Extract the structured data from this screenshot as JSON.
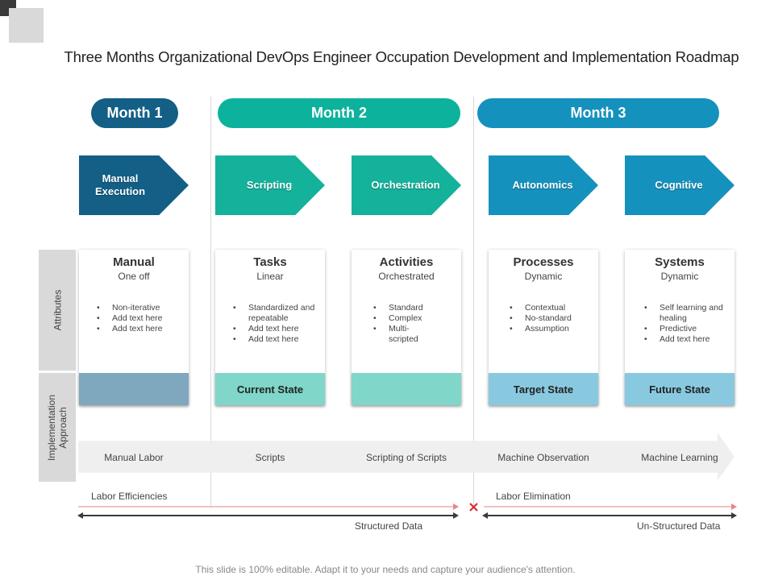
{
  "title": "Three Months Organizational DevOps Engineer Occupation Development and Implementation Roadmap",
  "months": [
    "Month 1",
    "Month 2",
    "Month 3"
  ],
  "stages": [
    {
      "label": "Manual Execution"
    },
    {
      "label": "Scripting"
    },
    {
      "label": "Orchestration"
    },
    {
      "label": "Autonomics"
    },
    {
      "label": "Cognitive"
    }
  ],
  "side_labels": {
    "attributes": "Attributes",
    "implementation": "Implementation Approach"
  },
  "cards": [
    {
      "title": "Manual",
      "subtitle": "One off",
      "bullets": [
        "Non-iterative",
        "Add text here",
        "Add text here"
      ]
    },
    {
      "title": "Tasks",
      "subtitle": "Linear",
      "bullets": [
        "Standardized and repeatable",
        "Add text here",
        "Add text here"
      ]
    },
    {
      "title": "Activities",
      "subtitle": "Orchestrated",
      "bullets": [
        "Standard",
        "Complex",
        "Multi- scripted"
      ]
    },
    {
      "title": "Processes",
      "subtitle": "Dynamic",
      "bullets": [
        "Contextual",
        "No-standard",
        "Assumption"
      ]
    },
    {
      "title": "Systems",
      "subtitle": "Dynamic",
      "bullets": [
        "Self learning and healing",
        "Predictive",
        "Add text here"
      ]
    }
  ],
  "states": [
    "",
    "Current State",
    "",
    "Target State",
    "Future State"
  ],
  "approaches": [
    "Manual Labor",
    "Scripts",
    "Scripting of Scripts",
    "Machine Observation",
    "Machine Learning"
  ],
  "bottom": {
    "labor_efficiencies": "Labor Efficiencies",
    "labor_elimination": "Labor Elimination",
    "structured_data": "Structured Data",
    "unstructured_data": "Un-Structured Data",
    "separator_icon": "cross-icon"
  },
  "footer": "This slide is 100% editable. Adapt it to your needs and capture your audience's attention.",
  "colors": {
    "month1": "#135f86",
    "month2": "#0db29c",
    "month3": "#1591bd",
    "stage1": "#135f86",
    "stage2": "#14b19b",
    "stage3": "#14b19b",
    "stage4": "#1591bd",
    "stage5": "#1591bd",
    "state1": "#7fa8bf",
    "state2": "#7fd6c9",
    "state3": "#7fd6c9",
    "state4": "#89c9e0",
    "state5": "#89c9e0",
    "red_arrow": "#e8868a",
    "cross": "#d92f2f"
  }
}
